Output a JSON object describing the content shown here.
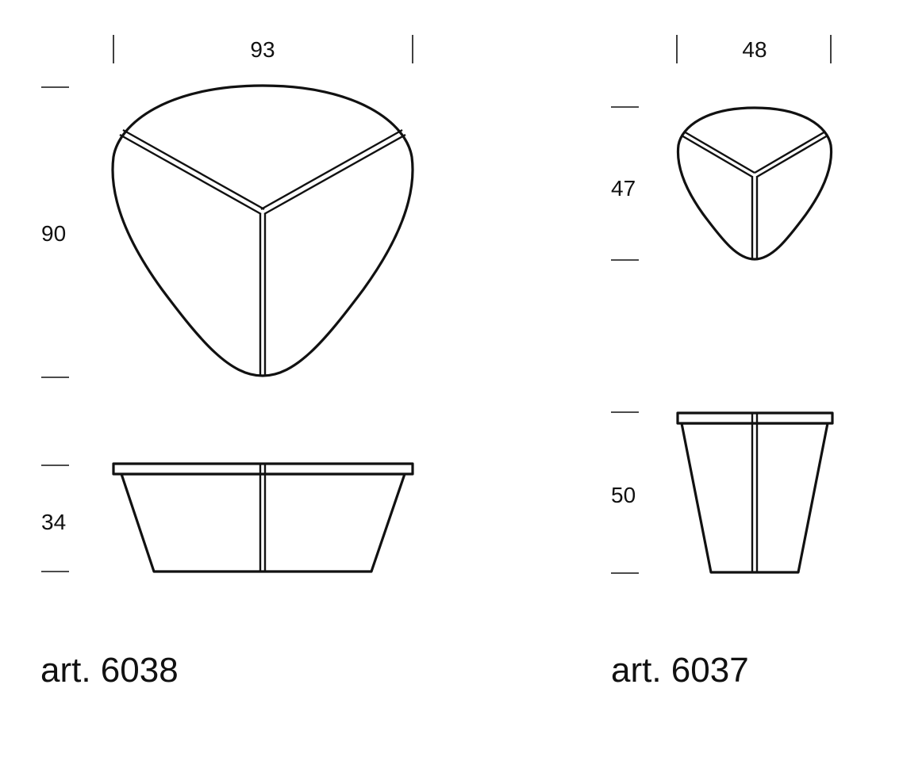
{
  "products": [
    {
      "article_label": "art. 6038",
      "width": "93",
      "depth": "90",
      "height": "34"
    },
    {
      "article_label": "art. 6037",
      "width": "48",
      "depth": "47",
      "height": "50"
    }
  ]
}
